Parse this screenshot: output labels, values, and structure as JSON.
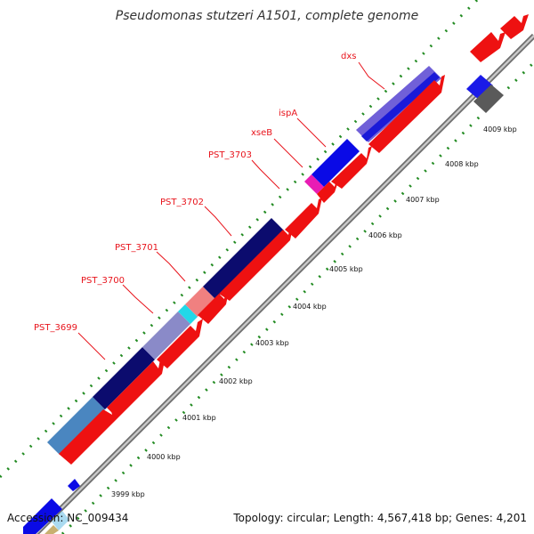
{
  "title": "Pseudomonas stutzeri A1501, complete genome",
  "footer": {
    "accession": "Accession: NC_009434",
    "topology": "Topology: circular; Length: 4,567,418 bp; Genes: 4,201"
  },
  "gene_labels": [
    {
      "text": "dxs"
    },
    {
      "text": "ispA"
    },
    {
      "text": "xseB"
    },
    {
      "text": "PST_3703"
    },
    {
      "text": "PST_3702"
    },
    {
      "text": "PST_3701"
    },
    {
      "text": "PST_3700"
    },
    {
      "text": "PST_3699"
    }
  ],
  "ticks": [
    {
      "label": "3999 kbp"
    },
    {
      "label": "4000 kbp"
    },
    {
      "label": "4001 kbp"
    },
    {
      "label": "4002 kbp"
    },
    {
      "label": "4003 kbp"
    },
    {
      "label": "4004 kbp"
    },
    {
      "label": "4005 kbp"
    },
    {
      "label": "4006 kbp"
    },
    {
      "label": "4007 kbp"
    },
    {
      "label": "4008 kbp"
    },
    {
      "label": "4009 kbp"
    }
  ],
  "colors": {
    "backbone": "#8c8c8c",
    "cds": "#ee1111",
    "gene": "#0a0ae6",
    "navy": "#0b0b6e",
    "steelblue": "#4a86c0",
    "purple": "#7060d8",
    "pink": "#f08080",
    "magenta": "#e81cb4",
    "cyan": "#22d8e8",
    "grey": "#5a5a5a",
    "green_dots": "#228b22",
    "label_red": "#e8141c"
  }
}
